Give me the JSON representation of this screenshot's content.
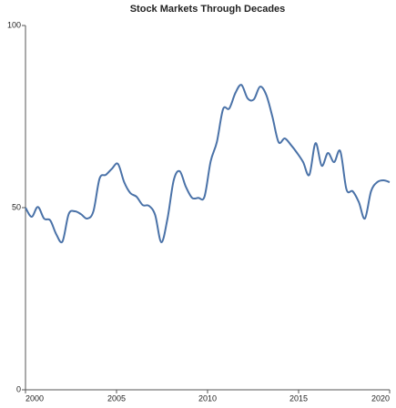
{
  "chart_data": {
    "type": "line",
    "title": "Stock Markets Through Decades",
    "x": [
      2000,
      2000.34,
      2000.68,
      2001.02,
      2001.36,
      2001.69,
      2002.03,
      2002.37,
      2002.71,
      2003.05,
      2003.39,
      2003.73,
      2004.07,
      2004.41,
      2004.75,
      2005.08,
      2005.42,
      2005.76,
      2006.1,
      2006.44,
      2006.78,
      2007.12,
      2007.46,
      2007.8,
      2008.14,
      2008.47,
      2008.81,
      2009.15,
      2009.49,
      2009.83,
      2010.17,
      2010.51,
      2010.85,
      2011.19,
      2011.53,
      2011.86,
      2012.2,
      2012.54,
      2012.88,
      2013.22,
      2013.56,
      2013.9,
      2014.24,
      2014.58,
      2014.92,
      2015.25,
      2015.59,
      2015.93,
      2016.27,
      2016.61,
      2016.95,
      2017.29,
      2017.63,
      2017.97,
      2018.31,
      2018.64,
      2018.98,
      2019.32,
      2019.66,
      2020
    ],
    "series": [
      {
        "color": "#4a72a8",
        "values": [
          50,
          47.5,
          50.2,
          47,
          46.5,
          42.7,
          40.7,
          48.2,
          49,
          48.2,
          47,
          49,
          58,
          59,
          60.7,
          62,
          57,
          54,
          53,
          50.7,
          50.5,
          48,
          40.5,
          47,
          57.5,
          60,
          55.7,
          52.7,
          52.7,
          53,
          62.7,
          68,
          77,
          77.2,
          81.5,
          83.7,
          80,
          79.7,
          83.2,
          81,
          75,
          68,
          69,
          67.2,
          65,
          62.5,
          59,
          67.7,
          61.5,
          65,
          62.5,
          65.5,
          55,
          54.5,
          51.5,
          47,
          54.5,
          57,
          57.5,
          57
        ]
      }
    ],
    "xlim": [
      2000,
      2020
    ],
    "xticks": [
      2000,
      2005,
      2010,
      2015,
      2020
    ],
    "ylim": [
      0,
      100
    ],
    "yticks": [
      0,
      50,
      100
    ]
  }
}
